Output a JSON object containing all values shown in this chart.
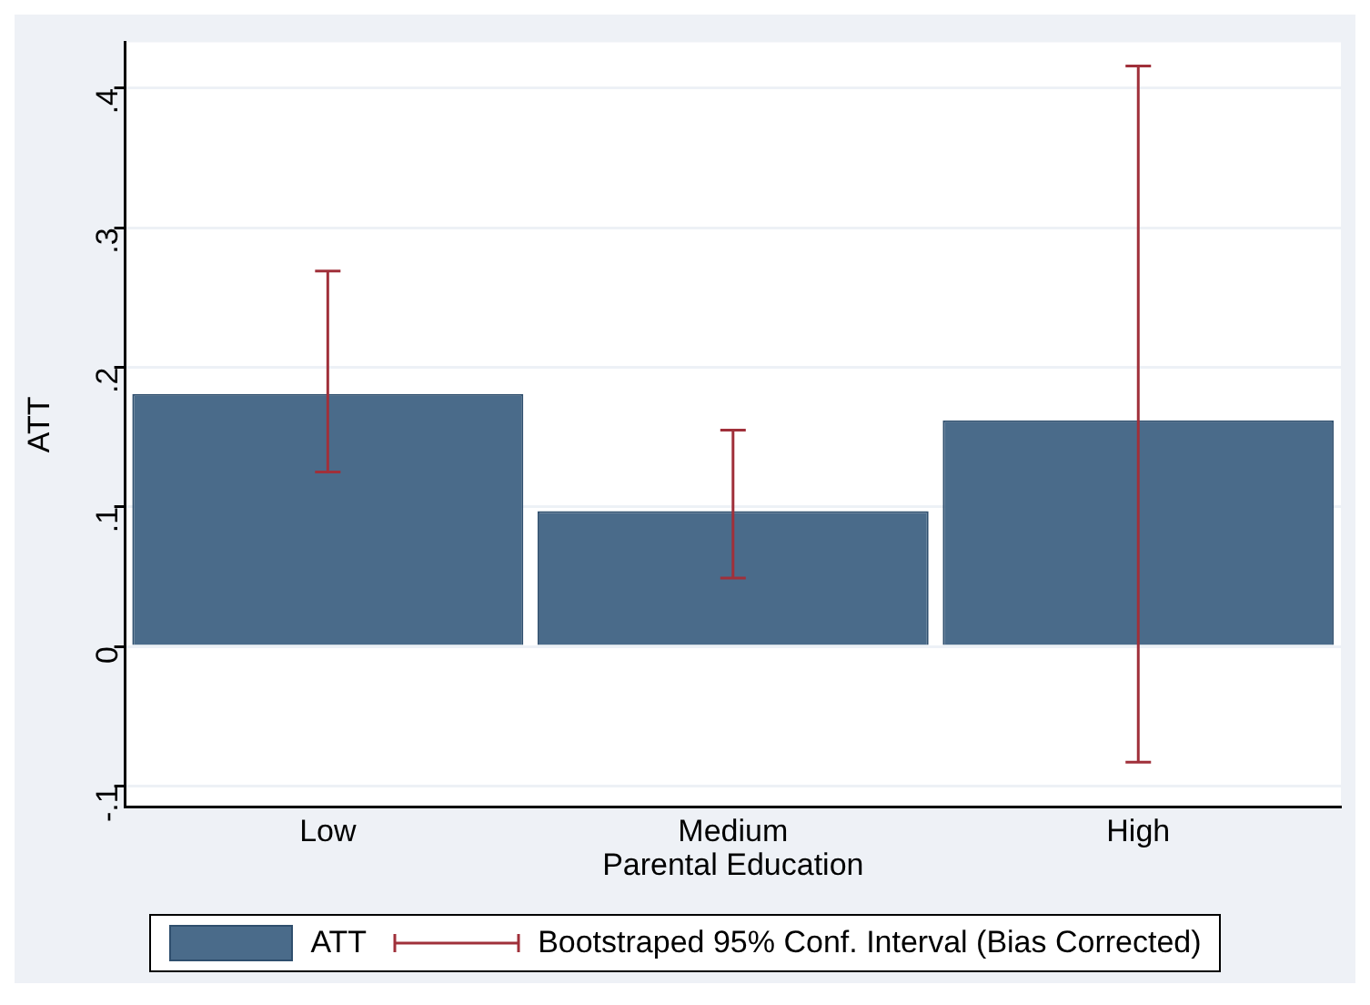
{
  "chart_data": {
    "type": "bar",
    "xlabel": "Parental Education",
    "ylabel": "ATT",
    "categories": [
      "Low",
      "Medium",
      "High"
    ],
    "series": [
      {
        "name": "ATT",
        "color": "#4a6b8a",
        "values": [
          0.181,
          0.097,
          0.162
        ],
        "errors": [
          [
            0.125,
            0.269
          ],
          [
            0.049,
            0.155
          ],
          [
            -0.083,
            0.416
          ]
        ]
      }
    ],
    "annotations": [
      "Bootstraped 95% Conf. Interval (Bias Corrected)"
    ],
    "ylim": [
      -0.115,
      0.433
    ],
    "yticks": [
      {
        "value": -0.1,
        "label": "-.1"
      },
      {
        "value": 0,
        "label": "0"
      },
      {
        "value": 0.1,
        "label": ".1"
      },
      {
        "value": 0.2,
        "label": ".2"
      },
      {
        "value": 0.3,
        "label": ".3"
      },
      {
        "value": 0.4,
        "label": ".4"
      }
    ],
    "grid": "y",
    "legend": "bottom"
  }
}
